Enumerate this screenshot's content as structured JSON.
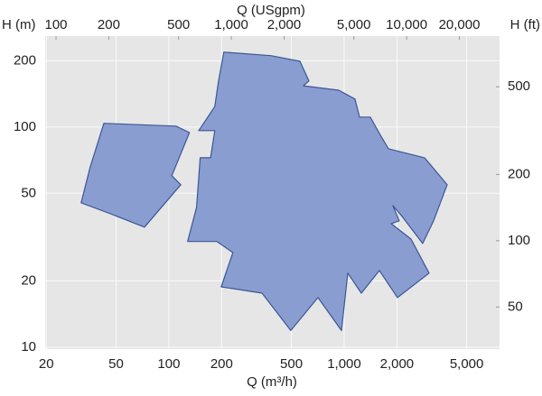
{
  "chart_data": {
    "type": "polygon",
    "xlabel": "Q (m³/h)",
    "x2label": "Q (USgpm)",
    "ylabel": "H (m)",
    "y2label": "H (ft)",
    "log_x": true,
    "log_y": true,
    "grid": true,
    "color": "#8a9dd0",
    "edge_color": "#3b5796",
    "xlim": [
      19.7,
      7700
    ],
    "xticks": [
      20,
      50,
      100,
      200,
      500,
      {
        "value": 1000,
        "label": "1,000"
      },
      {
        "value": 2000,
        "label": "2,000"
      },
      {
        "value": 5000,
        "label": "5,000"
      }
    ],
    "x2lim": [
      86.7,
      33900
    ],
    "x2ticks": [
      100,
      200,
      500,
      {
        "value": 1000,
        "label": "1,000"
      },
      {
        "value": 2000,
        "label": "2,000"
      },
      {
        "value": 5000,
        "label": "5,000"
      },
      {
        "value": 10000,
        "label": "10,000"
      },
      {
        "value": 20000,
        "label": "20,000"
      }
    ],
    "ylim": [
      9.8,
      259
    ],
    "yticks": [
      10,
      20,
      50,
      100,
      200
    ],
    "y2lim": [
      32.2,
      850
    ],
    "y2ticks": [
      50,
      100,
      200,
      500
    ],
    "series": [
      {
        "x": [
          31.6,
          35.6,
          42.6,
          110,
          131,
          104,
          117,
          72.6,
          47.9
        ],
        "y": [
          45.3,
          66,
          104,
          101,
          94.4,
          60.1,
          54.7,
          35.1,
          40
        ]
      },
      {
        "x": [
          206,
          382,
          559,
          630,
          586,
          931,
          1153,
          1224,
          1410,
          1589,
          1790,
          2875,
          3870,
          3240,
          2806,
          2138,
          1897,
          2063,
          1854,
          2406,
          3052,
          2015,
          1589,
          1253,
          1049,
          965,
          709,
          496,
          340,
          199,
          232,
          188,
          128,
          144,
          151,
          173,
          183,
          148,
          183,
          192
        ],
        "y": [
          219,
          211,
          199,
          162,
          154,
          147,
          134,
          111,
          111,
          93.6,
          79.7,
          72.5,
          54.7,
          37.5,
          29.6,
          39.3,
          44,
          37.5,
          36.4,
          31,
          21.7,
          16.8,
          22.3,
          17.6,
          21.7,
          11.9,
          16.8,
          11.9,
          17.6,
          18.8,
          26.9,
          30.2,
          30.2,
          43.2,
          72.5,
          72.5,
          96.3,
          96.3,
          124,
          162
        ]
      }
    ]
  }
}
